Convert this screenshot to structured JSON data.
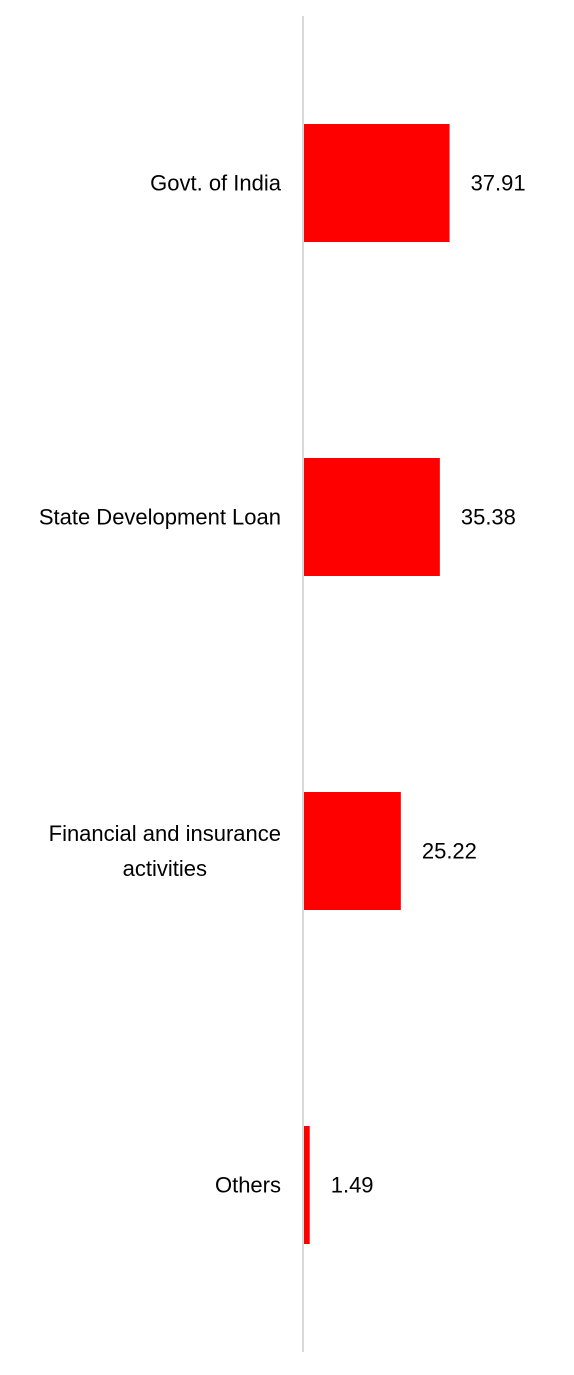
{
  "chart_data": {
    "type": "bar",
    "orientation": "horizontal",
    "title": "",
    "xlabel": "",
    "ylabel": "",
    "categories": [
      [
        "Govt. of India"
      ],
      [
        "State Development Loan"
      ],
      [
        "Financial and insurance",
        "activities"
      ],
      [
        "Others"
      ]
    ],
    "values": [
      37.91,
      35.38,
      25.22,
      1.49
    ],
    "value_labels": [
      "37.91",
      "35.38",
      "25.22",
      "1.49"
    ],
    "xlim": [
      0,
      60
    ],
    "grid": false,
    "legend": "none"
  },
  "colors": {
    "bar": "#ff0000",
    "axis": "#d9d9d9",
    "text": "#000000"
  }
}
